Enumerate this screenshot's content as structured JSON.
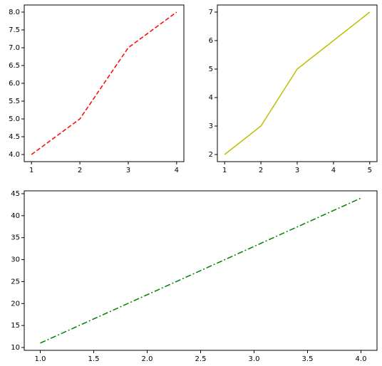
{
  "chart_data": [
    {
      "type": "line",
      "x": [
        1,
        2,
        3,
        4
      ],
      "xlim": [
        0.85,
        4.15
      ],
      "xticks": [
        1,
        2,
        3,
        4
      ],
      "ylim": [
        3.8,
        8.2
      ],
      "yticks": [
        {
          "value": 4,
          "label": "4.0"
        },
        {
          "value": 4.5,
          "label": "4.5"
        },
        {
          "value": 5,
          "label": "5.0"
        },
        {
          "value": 5.5,
          "label": "5.5"
        },
        {
          "value": 6,
          "label": "6.0"
        },
        {
          "value": 6.5,
          "label": "6.5"
        },
        {
          "value": 7,
          "label": "7.0"
        },
        {
          "value": 7.5,
          "label": "7.5"
        },
        {
          "value": 8,
          "label": "8.0"
        }
      ],
      "series": [
        {
          "color": "#ff0000",
          "linestyle": "dashed",
          "values": [
            4,
            5,
            7,
            8
          ]
        }
      ]
    },
    {
      "type": "line",
      "x": [
        1,
        2,
        3,
        4,
        5
      ],
      "xlim": [
        0.8,
        5.2
      ],
      "xticks": [
        1,
        2,
        3,
        4,
        5
      ],
      "ylim": [
        1.75,
        7.25
      ],
      "yticks": [
        2,
        3,
        4,
        5,
        6,
        7
      ],
      "series": [
        {
          "color": "#bfbf00",
          "linestyle": "solid",
          "values": [
            2,
            3,
            5,
            6,
            7
          ]
        }
      ]
    },
    {
      "type": "line",
      "x": [
        1,
        2,
        3,
        4
      ],
      "xlim": [
        0.85,
        4.15
      ],
      "xticks": [
        {
          "value": 1,
          "label": "1.0"
        },
        {
          "value": 1.5,
          "label": "1.5"
        },
        {
          "value": 2,
          "label": "2.0"
        },
        {
          "value": 2.5,
          "label": "2.5"
        },
        {
          "value": 3,
          "label": "3.0"
        },
        {
          "value": 3.5,
          "label": "3.5"
        },
        {
          "value": 4,
          "label": "4.0"
        }
      ],
      "ylim": [
        9.35,
        45.65
      ],
      "yticks": [
        10,
        15,
        20,
        25,
        30,
        35,
        40,
        45
      ],
      "series": [
        {
          "color": "#008000",
          "linestyle": "dashdot",
          "values": [
            11,
            22,
            33,
            44
          ]
        }
      ]
    }
  ]
}
